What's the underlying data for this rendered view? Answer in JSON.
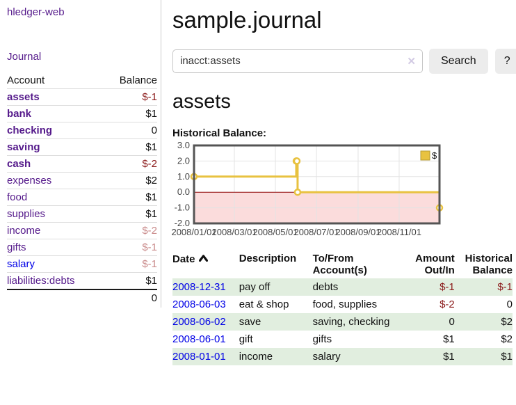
{
  "sidebar": {
    "brand": "hledger-web",
    "nav_journal": "Journal",
    "accounts_table": {
      "headers": {
        "account": "Account",
        "balance": "Balance"
      },
      "rows": [
        {
          "account": "assets",
          "balance": "$-1"
        },
        {
          "account": "bank",
          "balance": "$1"
        },
        {
          "account": "checking",
          "balance": "0"
        },
        {
          "account": "saving",
          "balance": "$1"
        },
        {
          "account": "cash",
          "balance": "$-2"
        },
        {
          "account": "expenses",
          "balance": "$2"
        },
        {
          "account": "food",
          "balance": "$1"
        },
        {
          "account": "supplies",
          "balance": "$1"
        },
        {
          "account": "income",
          "balance": "$-2"
        },
        {
          "account": "gifts",
          "balance": "$-1"
        },
        {
          "account": "salary",
          "balance": "$-1"
        },
        {
          "account": "liabilities:debts",
          "balance": "$1"
        }
      ],
      "total": "0"
    }
  },
  "header": {
    "title": "sample.journal"
  },
  "search": {
    "value": "inacct:assets",
    "clear_icon": "✕",
    "button_label": "Search",
    "help_label": "?"
  },
  "account_page": {
    "heading": "assets",
    "chart_title": "Historical Balance:"
  },
  "chart_data": {
    "type": "line",
    "step": true,
    "title": "Historical Balance:",
    "xlim": [
      0,
      365
    ],
    "ylim": [
      -2,
      3
    ],
    "grid": true,
    "legend_position": "top-right",
    "legend": {
      "label": "$"
    },
    "series": [
      {
        "name": "$",
        "color": "#e8c240",
        "points": [
          {
            "date": "2008-01-01",
            "x": 0,
            "y": 1
          },
          {
            "date": "2008-06-01",
            "x": 152,
            "y": 2
          },
          {
            "date": "2008-06-02",
            "x": 153,
            "y": 2
          },
          {
            "date": "2008-06-03",
            "x": 154,
            "y": 0
          },
          {
            "date": "2008-12-31",
            "x": 365,
            "y": -1
          }
        ]
      }
    ],
    "yticks": [
      {
        "v": 3,
        "label": "3.0"
      },
      {
        "v": 2,
        "label": "2.0"
      },
      {
        "v": 1,
        "label": "1.0"
      },
      {
        "v": 0,
        "label": "0.0"
      },
      {
        "v": -1,
        "label": "-1.0"
      },
      {
        "v": -2,
        "label": "-2.0"
      }
    ],
    "xticks": [
      {
        "v": 0,
        "label": "2008/01/01"
      },
      {
        "v": 60,
        "label": "2008/03/01"
      },
      {
        "v": 121,
        "label": "2008/05/01"
      },
      {
        "v": 182,
        "label": "2008/07/01"
      },
      {
        "v": 244,
        "label": "2008/09/01"
      },
      {
        "v": 305,
        "label": "2008/11/01"
      }
    ],
    "negative_region_fill": "#fbdcdc",
    "zero_line_color": "#8b0000"
  },
  "register": {
    "headers": {
      "date": "Date",
      "description": "Description",
      "accounts": "To/From Account(s)",
      "amount": "Amount Out/In",
      "balance": "Historical Balance"
    },
    "rows": [
      {
        "date": "2008-12-31",
        "description": "pay off",
        "accounts": "debts",
        "amount": "$-1",
        "balance": "$-1"
      },
      {
        "date": "2008-06-03",
        "description": "eat & shop",
        "accounts": "food, supplies",
        "amount": "$-2",
        "balance": "0"
      },
      {
        "date": "2008-06-02",
        "description": "save",
        "accounts": "saving, checking",
        "amount": "0",
        "balance": "$2"
      },
      {
        "date": "2008-06-01",
        "description": "gift",
        "accounts": "gifts",
        "amount": "$1",
        "balance": "$2"
      },
      {
        "date": "2008-01-01",
        "description": "income",
        "accounts": "salary",
        "amount": "$1",
        "balance": "$1"
      }
    ]
  },
  "colors": {
    "link_purple": "#551a8b",
    "link_blue": "#0000e6",
    "negative_strong": "#8b1a1a",
    "negative_muted": "#c98a8a",
    "row_stripe_green": "#e1eedf",
    "series_gold": "#e8c240",
    "chart_border": "#545454"
  }
}
